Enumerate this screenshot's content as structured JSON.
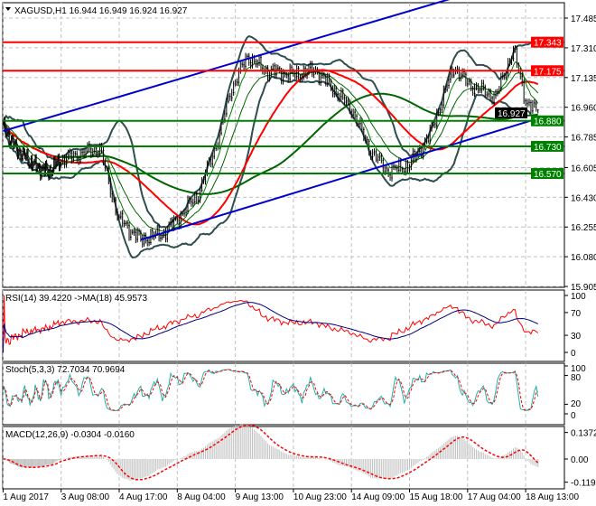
{
  "chart_data": {
    "type": "candlestick",
    "symbol": "XAGUSD",
    "timeframe": "H1",
    "title": "XAGUSD,H1  16.944 16.949 16.924 16.927",
    "ohlc_last": {
      "open": 16.944,
      "high": 16.949,
      "low": 16.924,
      "close": 16.927
    },
    "price_ticks": [
      "17.485",
      "17.310",
      "17.135",
      "16.960",
      "16.785",
      "16.605",
      "16.430",
      "16.255",
      "16.080",
      "15.905"
    ],
    "price_ylim": [
      15.905,
      17.485
    ],
    "current_price": "16.927",
    "time_ticks": [
      "1 Aug 2017",
      "3 Aug 08:00",
      "4 Aug 17:00",
      "8 Aug 04:00",
      "9 Aug 13:00",
      "10 Aug 23:00",
      "14 Aug 09:00",
      "15 Aug 18:00",
      "17 Aug 04:00",
      "18 Aug 13:00"
    ],
    "levels": [
      {
        "value": "17.343",
        "color": "#ff0000"
      },
      {
        "value": "17.175",
        "color": "#ff0000"
      },
      {
        "value": "16.880",
        "color": "#008000"
      },
      {
        "value": "16.730",
        "color": "#008000"
      },
      {
        "value": "16.570",
        "color": "#008000"
      }
    ],
    "channel": {
      "color": "#0000cd",
      "upper": [
        {
          "t": "1 Aug 00:00",
          "price": 16.82
        },
        {
          "t": "16 Aug 22:00",
          "price": 17.61
        }
      ],
      "lower": [
        {
          "t": "7 Aug 06:00",
          "price": 16.18
        },
        {
          "t": "18 Aug 22:00",
          "price": 16.9
        }
      ]
    },
    "price_path": [
      {
        "t": "1 Aug 00:00",
        "close": 16.85
      },
      {
        "t": "1 Aug 12:00",
        "close": 16.72
      },
      {
        "t": "2 Aug 06:00",
        "close": 16.62
      },
      {
        "t": "2 Aug 20:00",
        "close": 16.58
      },
      {
        "t": "3 Aug 08:00",
        "close": 16.65
      },
      {
        "t": "4 Aug 06:00",
        "close": 16.72
      },
      {
        "t": "4 Aug 14:00",
        "close": 16.4
      },
      {
        "t": "4 Aug 17:00",
        "close": 16.3
      },
      {
        "t": "7 Aug 06:00",
        "close": 16.18
      },
      {
        "t": "7 Aug 20:00",
        "close": 16.22
      },
      {
        "t": "8 Aug 04:00",
        "close": 16.3
      },
      {
        "t": "8 Aug 16:00",
        "close": 16.45
      },
      {
        "t": "9 Aug 04:00",
        "close": 16.8
      },
      {
        "t": "9 Aug 10:00",
        "close": 17.05
      },
      {
        "t": "9 Aug 20:00",
        "close": 17.26
      },
      {
        "t": "10 Aug 06:00",
        "close": 17.18
      },
      {
        "t": "10 Aug 23:00",
        "close": 17.15
      },
      {
        "t": "11 Aug 12:00",
        "close": 17.18
      },
      {
        "t": "14 Aug 00:00",
        "close": 17.05
      },
      {
        "t": "14 Aug 09:00",
        "close": 16.95
      },
      {
        "t": "14 Aug 20:00",
        "close": 16.7
      },
      {
        "t": "15 Aug 06:00",
        "close": 16.58
      },
      {
        "t": "15 Aug 18:00",
        "close": 16.62
      },
      {
        "t": "16 Aug 06:00",
        "close": 16.8
      },
      {
        "t": "16 Aug 20:00",
        "close": 17.2
      },
      {
        "t": "17 Aug 04:00",
        "close": 17.1
      },
      {
        "t": "17 Aug 20:00",
        "close": 17.02
      },
      {
        "t": "18 Aug 06:00",
        "close": 17.3
      },
      {
        "t": "18 Aug 13:00",
        "close": 17.0
      },
      {
        "t": "18 Aug 20:00",
        "close": 16.927
      }
    ],
    "indicators": {
      "rsi": {
        "label": "RSI(14) 39.4220  ->MA(18) 45.9573",
        "ticks": [
          "100",
          "70",
          "30",
          "0"
        ],
        "color": "#ff0000",
        "ma_color": "#000080"
      },
      "stoch": {
        "label": "Stoch(5,3,3) 72.7034 70.9694",
        "ticks": [
          "100",
          "80",
          "20",
          "0"
        ],
        "main_color": "#20b2aa",
        "signal_color": "#ff0000"
      },
      "macd": {
        "label": "MACD(12,26,9) -0.0304 -0.0160",
        "ticks": [
          "0.1372",
          "0.00",
          "-0.1198"
        ],
        "hist_color": "#c0c0c0",
        "signal_color": "#ff0000"
      }
    },
    "overlays": {
      "ma_fast_color": "#008000",
      "ma_mid_color": "#006400",
      "ma_slow_color": "#ff0000",
      "ma_long_color": "#006400",
      "bands_color": "#2f4f4f"
    }
  }
}
